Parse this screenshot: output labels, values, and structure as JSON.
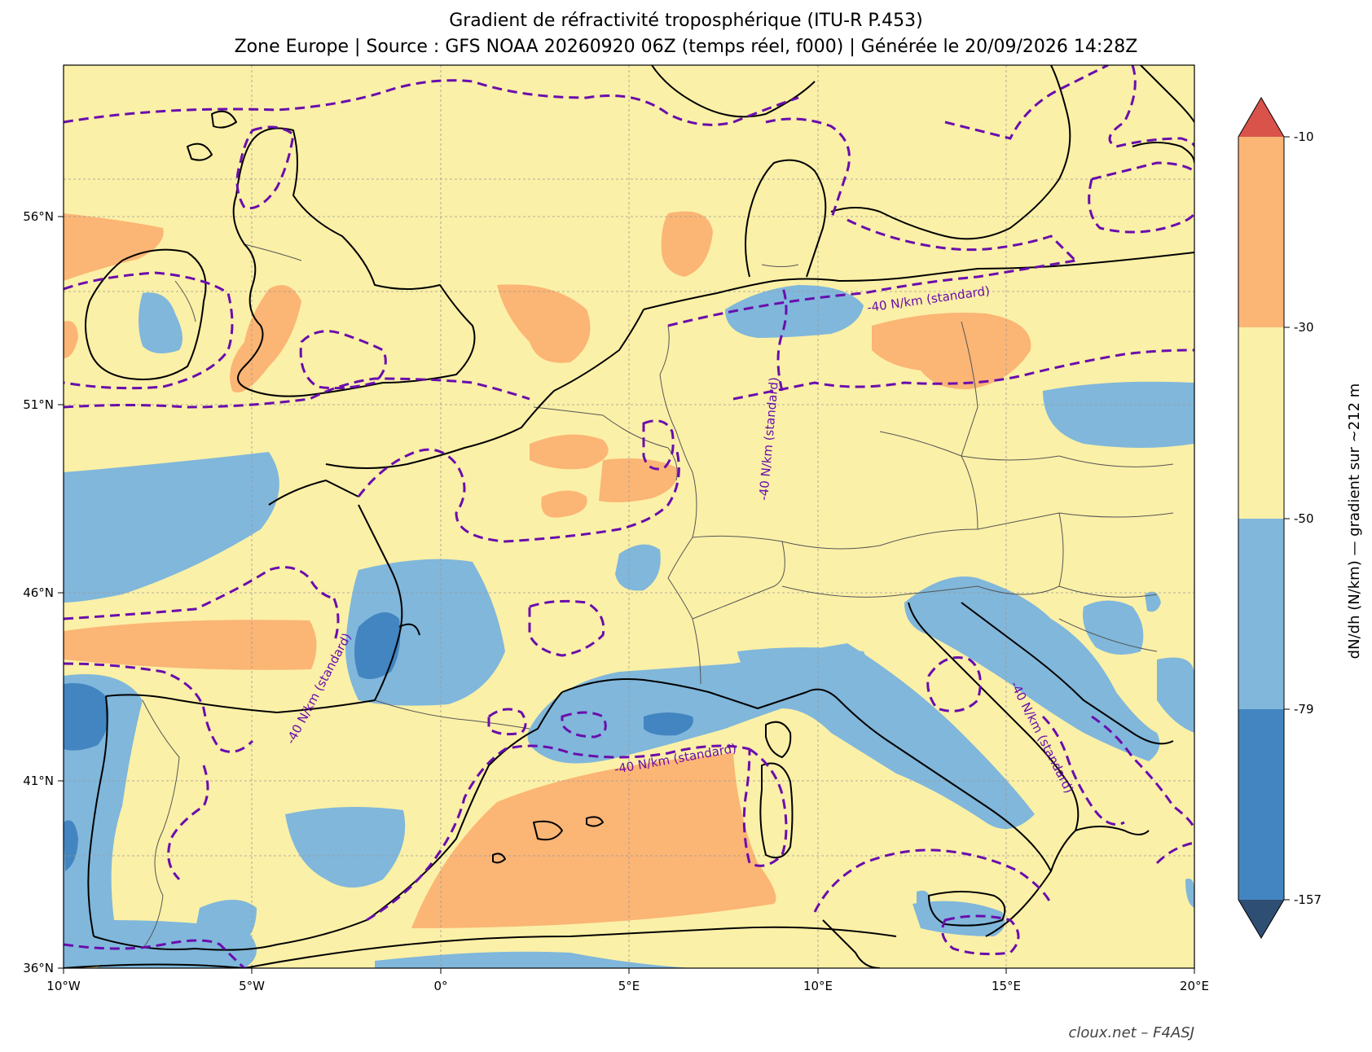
{
  "title": {
    "line1": "Gradient de réfractivité troposphérique (ITU-R P.453)",
    "line2": "Zone Europe | Source : GFS NOAA 20260920 06Z (temps réel, f000) | Générée le 20/09/2026 14:28Z"
  },
  "map": {
    "lon_range": [
      -10,
      20
    ],
    "lat_range": [
      36,
      58.3
    ],
    "x_ticks": [
      "10°W",
      "5°W",
      "0°",
      "5°E",
      "10°E",
      "15°E",
      "20°E"
    ],
    "y_ticks": [
      "56°N",
      "51°N",
      "46°N",
      "41°N",
      "36°N"
    ],
    "grid": "on (dashed)",
    "background_class_color": "#fbf0a7",
    "contour_label": "-40 N/km (standard)",
    "contour_color": "#6a0dad"
  },
  "colorbar": {
    "label": "dN/dh (N/km) — gradient sur ~212 m",
    "ticks": [
      "-10",
      "-30",
      "-50",
      "-79",
      "-157"
    ],
    "bins": [
      {
        "range": "> -10",
        "color": "#d9534a",
        "extend": "max"
      },
      {
        "range": "-30 to -10",
        "color": "#fbb575"
      },
      {
        "range": "-50 to -30",
        "color": "#fbf0a7"
      },
      {
        "range": "-79 to -50",
        "color": "#80b7db"
      },
      {
        "range": "-157 to -79",
        "color": "#4285c1"
      },
      {
        "range": "< -157",
        "color": "#2e4e73",
        "extend": "min"
      }
    ]
  },
  "credit": "cloux.net  –  F4ASJ"
}
